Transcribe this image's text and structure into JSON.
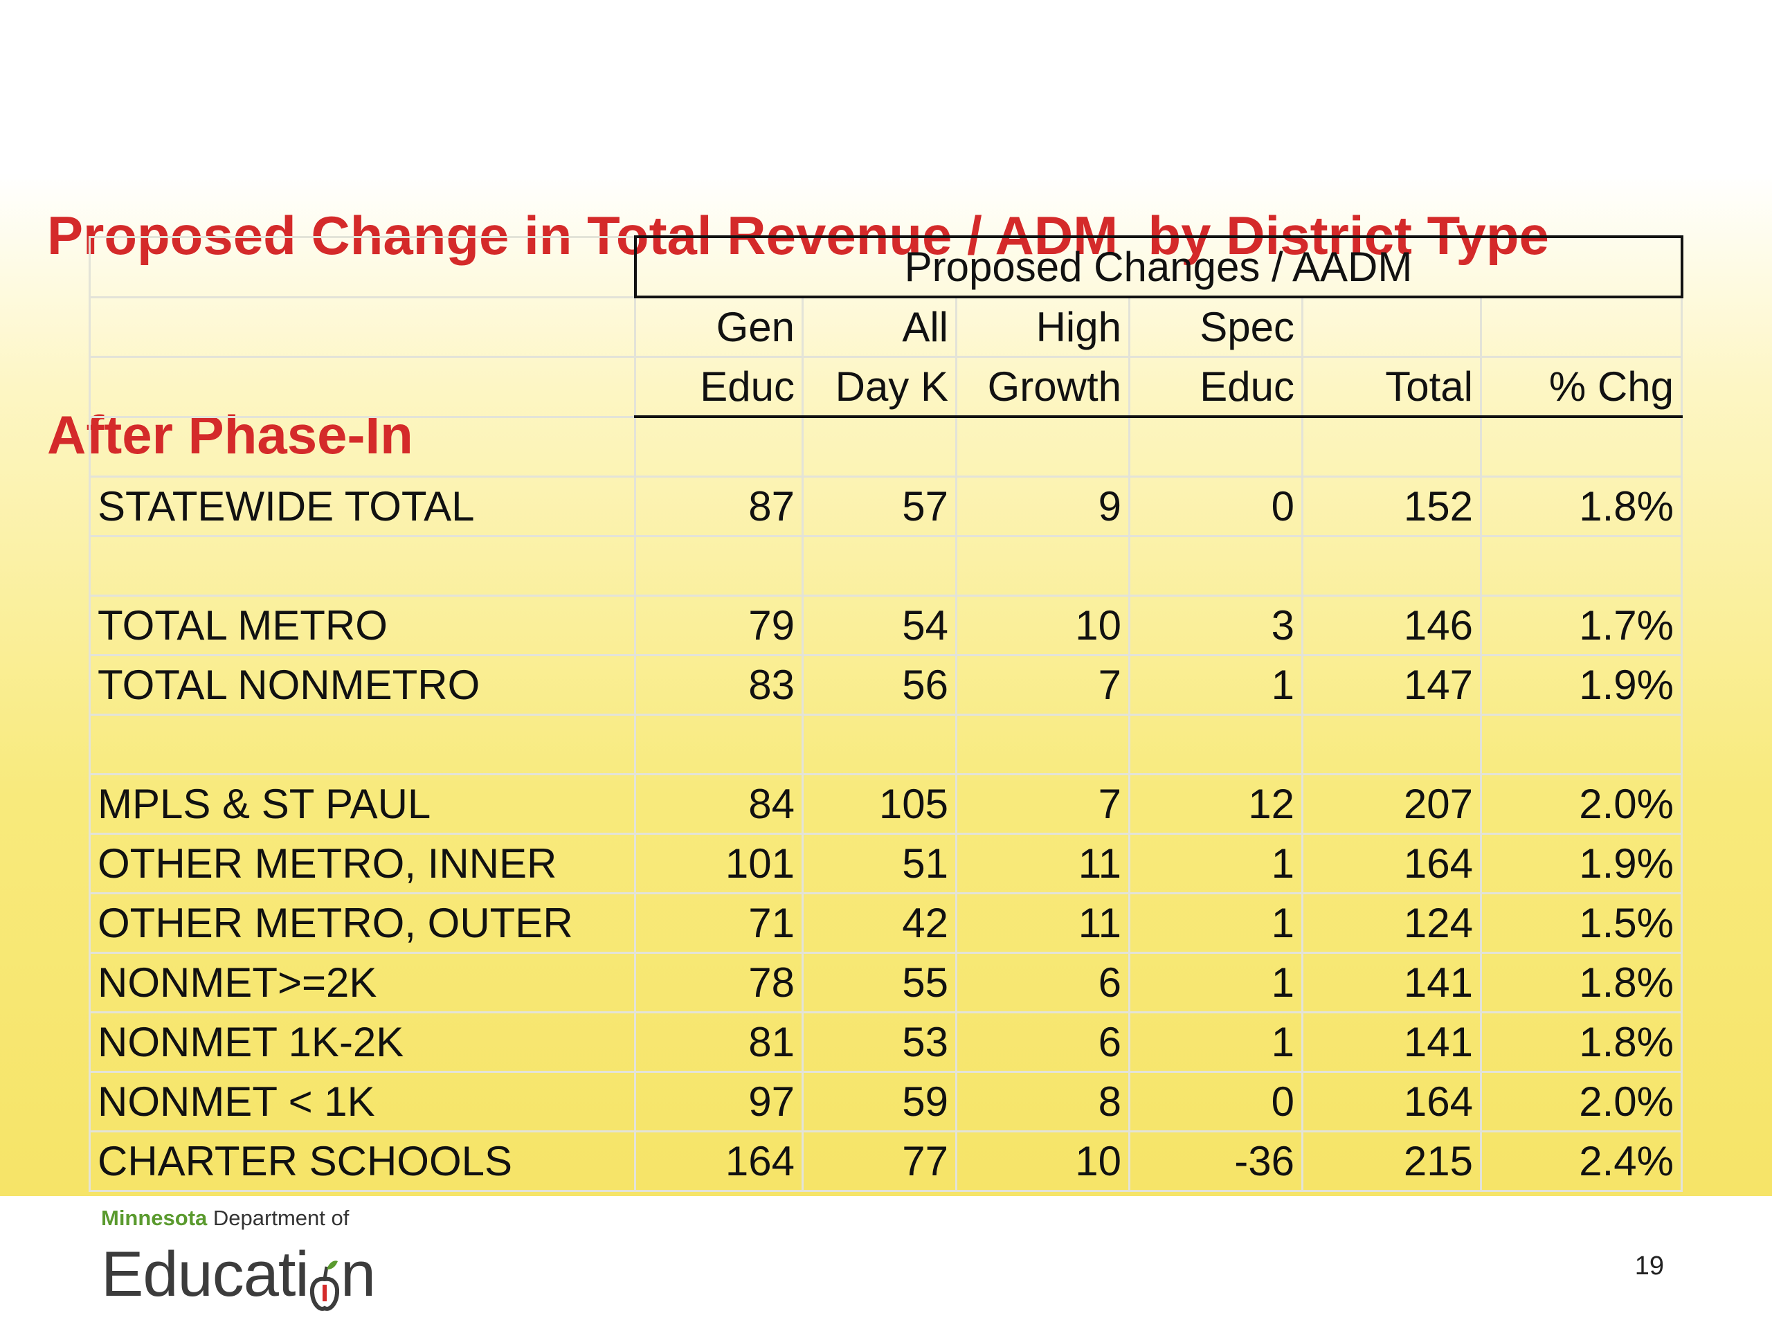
{
  "title": {
    "line1": "Proposed Change in Total Revenue / ADM  by District Type",
    "line2": "After Phase-In"
  },
  "table": {
    "group_header": "Proposed Changes / AADM",
    "columns": [
      {
        "line1": "Gen",
        "line2": "Educ"
      },
      {
        "line1": "All",
        "line2": "Day K"
      },
      {
        "line1": "High",
        "line2": "Growth"
      },
      {
        "line1": "Spec",
        "line2": "Educ"
      },
      {
        "line1": "",
        "line2": "Total"
      },
      {
        "line1": "",
        "line2": "% Chg"
      }
    ],
    "rows": [
      {
        "label": "",
        "values": [
          "",
          "",
          "",
          "",
          "",
          ""
        ]
      },
      {
        "label": "STATEWIDE TOTAL",
        "values": [
          "87",
          "57",
          "9",
          "0",
          "152",
          "1.8%"
        ]
      },
      {
        "label": "",
        "values": [
          "",
          "",
          "",
          "",
          "",
          ""
        ]
      },
      {
        "label": "TOTAL METRO",
        "values": [
          "79",
          "54",
          "10",
          "3",
          "146",
          "1.7%"
        ]
      },
      {
        "label": "TOTAL NONMETRO",
        "values": [
          "83",
          "56",
          "7",
          "1",
          "147",
          "1.9%"
        ]
      },
      {
        "label": "",
        "values": [
          "",
          "",
          "",
          "",
          "",
          ""
        ]
      },
      {
        "label": "MPLS & ST PAUL",
        "values": [
          "84",
          "105",
          "7",
          "12",
          "207",
          "2.0%"
        ]
      },
      {
        "label": "OTHER METRO, INNER",
        "values": [
          "101",
          "51",
          "11",
          "1",
          "164",
          "1.9%"
        ]
      },
      {
        "label": "OTHER METRO, OUTER",
        "values": [
          "71",
          "42",
          "11",
          "1",
          "124",
          "1.5%"
        ]
      },
      {
        "label": "NONMET>=2K",
        "values": [
          "78",
          "55",
          "6",
          "1",
          "141",
          "1.8%"
        ]
      },
      {
        "label": "NONMET 1K-2K",
        "values": [
          "81",
          "53",
          "6",
          "1",
          "141",
          "1.8%"
        ]
      },
      {
        "label": "NONMET < 1K",
        "values": [
          "97",
          "59",
          "8",
          "0",
          "164",
          "2.0%"
        ]
      },
      {
        "label": "CHARTER SCHOOLS",
        "values": [
          "164",
          "77",
          "10",
          "-36",
          "215",
          "2.4%"
        ]
      }
    ]
  },
  "footer": {
    "logo_state": "Minnesota",
    "logo_dept": "Department of",
    "logo_word_start": "Educati",
    "logo_word_end": "n",
    "page_number": "19"
  },
  "colors": {
    "title": "#d42a2a",
    "background_top": "#ffffff",
    "background_bottom": "#f6e468",
    "logo_green": "#5a9a2e"
  }
}
